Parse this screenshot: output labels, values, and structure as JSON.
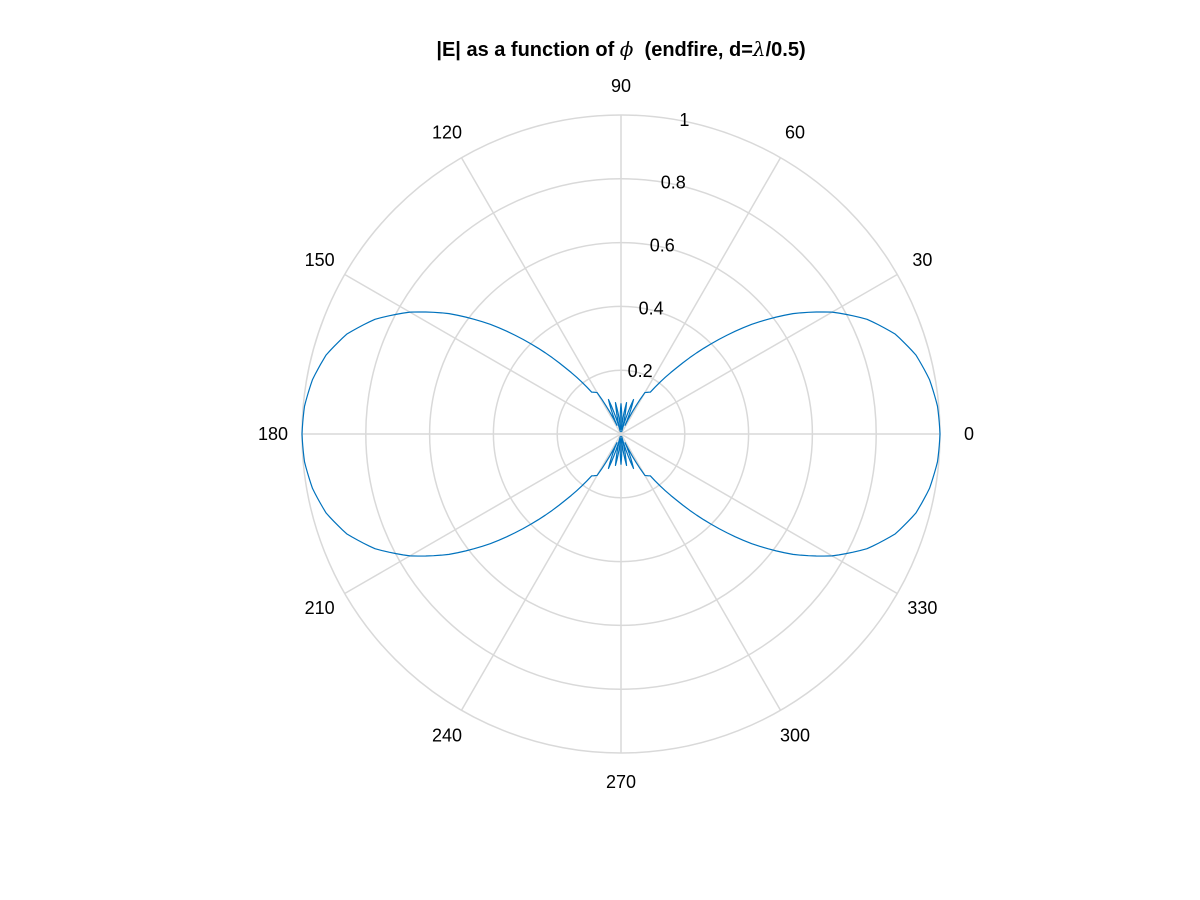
{
  "chart_data": {
    "type": "line",
    "coordinate_system": "polar",
    "title": "|E| as a function of ϕ  (endfire, d=λ/0.5)",
    "title_parts": {
      "prefix": "|E| as a function of ",
      "symbol_phi": "ϕ",
      "middle": "  (endfire, d=",
      "symbol_lambda": "λ",
      "suffix": "/0.5)"
    },
    "rlim": [
      0,
      1
    ],
    "r_ticks": [
      0.2,
      0.4,
      0.6,
      0.8,
      1
    ],
    "r_tick_labels": [
      "0.2",
      "0.4",
      "0.6",
      "0.8",
      "1"
    ],
    "theta_ticks_deg": [
      0,
      30,
      60,
      90,
      120,
      150,
      180,
      210,
      240,
      270,
      300,
      330
    ],
    "theta_tick_labels": [
      "0",
      "30",
      "60",
      "90",
      "120",
      "150",
      "180",
      "210",
      "240",
      "270",
      "300",
      "330"
    ],
    "theta_unit": "degrees",
    "grid": true,
    "series": [
      {
        "color": "#0072BD",
        "theta_deg": [
          0,
          5,
          10,
          15,
          20,
          25,
          30,
          35,
          40,
          45,
          50,
          55,
          60,
          65,
          70,
          75,
          80,
          85,
          90
        ],
        "r": [
          1.0,
          0.996,
          0.982,
          0.957,
          0.915,
          0.851,
          0.764,
          0.658,
          0.535,
          0.4,
          0.27,
          0.16,
          0.15,
          0.03,
          0.115,
          0.008,
          0.1,
          0.015,
          0.095
        ],
        "symmetry": "mirrored about the 0°–180° axis and the 90°–270° axis"
      }
    ]
  },
  "colors": {
    "series": "#0072BD",
    "grid": "#d9d9d9",
    "text": "#000000",
    "background": "#ffffff"
  }
}
